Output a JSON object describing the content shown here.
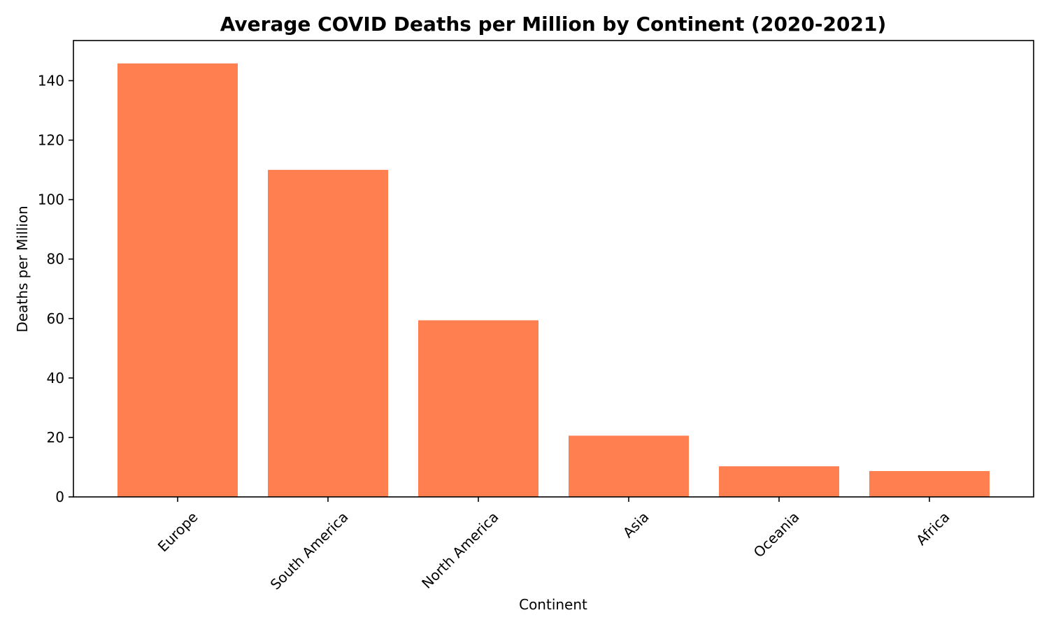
{
  "chart_data": {
    "type": "bar",
    "title": "Average COVID Deaths per Million by Continent (2020-2021)",
    "xlabel": "Continent",
    "ylabel": "Deaths per Million",
    "categories": [
      "Europe",
      "South America",
      "North America",
      "Asia",
      "Oceania",
      "Africa"
    ],
    "values": [
      145.8,
      110.0,
      59.4,
      20.6,
      10.3,
      8.7
    ],
    "ylim": [
      0,
      153.5
    ],
    "yticks": [
      0,
      20,
      40,
      60,
      80,
      100,
      120,
      140
    ],
    "grid": false,
    "bar_color": "#ff7f50"
  }
}
